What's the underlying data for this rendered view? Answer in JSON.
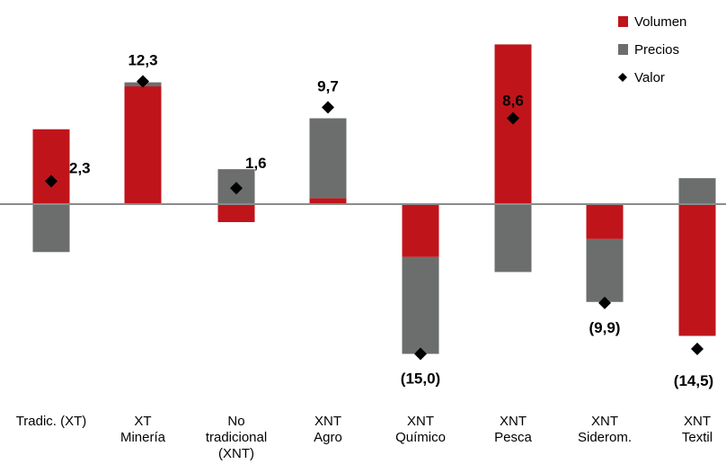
{
  "chart_data": {
    "type": "bar",
    "categories": [
      [
        "Tradic. (XT)"
      ],
      [
        "XT",
        "Minería"
      ],
      [
        "No",
        "tradicional",
        "(XNT)"
      ],
      [
        "XNT",
        "Agro"
      ],
      [
        "XNT",
        "Químico"
      ],
      [
        "XNT",
        "Pesca"
      ],
      [
        "XNT",
        "Siderom."
      ],
      [
        "XNT",
        "Textil"
      ]
    ],
    "series": [
      {
        "name": "Volumen",
        "color": "#c0141b",
        "values": [
          7.5,
          11.8,
          -1.8,
          0.6,
          -5.3,
          16.0,
          -3.5,
          -13.2
        ]
      },
      {
        "name": "Precios",
        "color": "#6b6e6c",
        "values": [
          -4.8,
          0.4,
          3.5,
          8.0,
          -9.7,
          -6.8,
          -6.3,
          2.6
        ]
      },
      {
        "name": "Valor",
        "color": "#000000",
        "marker": "diamond",
        "values": [
          2.3,
          12.3,
          1.6,
          9.7,
          -15.0,
          8.6,
          -9.9,
          -14.5
        ]
      }
    ],
    "value_labels": [
      "2,3",
      "12,3",
      "1,6",
      "9,7",
      "(15,0)",
      "8,6",
      "(9,9)",
      "(14,5)"
    ],
    "ylim": [
      -16.5,
      18.5
    ],
    "legend": "top-right"
  }
}
